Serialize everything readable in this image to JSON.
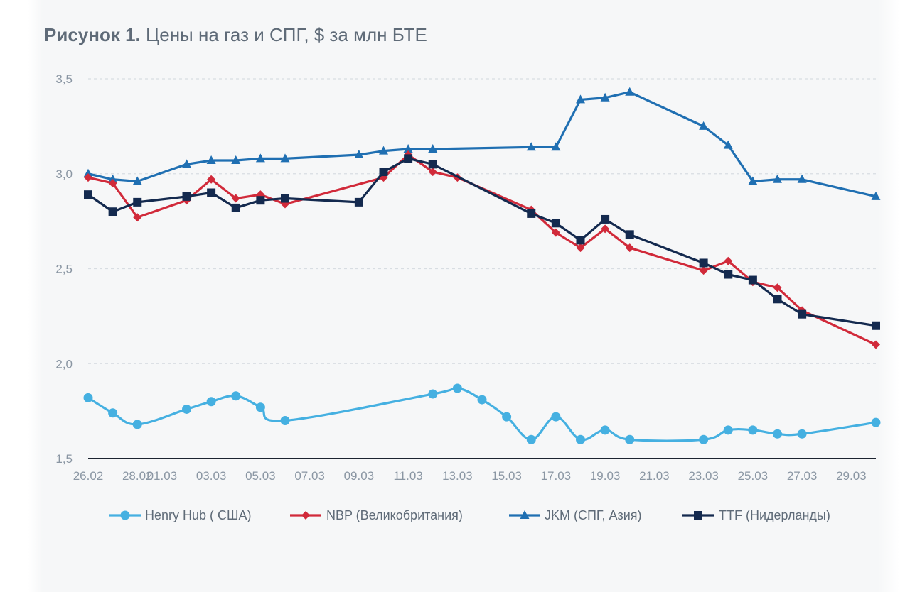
{
  "title": {
    "lead": "Рисунок 1.",
    "text": "Цены на газ и СПГ, $ за млн БТЕ"
  },
  "chart_data": {
    "type": "line",
    "title": "Рисунок 1. Цены на газ и СПГ, $ за млн БТЕ",
    "xlabel": "",
    "ylabel": "",
    "ylim": [
      1.5,
      3.5
    ],
    "yticks": [
      1.5,
      2.0,
      2.5,
      3.0,
      3.5
    ],
    "ytick_labels": [
      "1,5",
      "2,0",
      "2,5",
      "3,0",
      "3,5"
    ],
    "grid": "horizontal dashed",
    "legend": "bottom",
    "x_dates": [
      "26.02",
      "27.02",
      "28.02",
      "01.03",
      "02.03",
      "03.03",
      "04.03",
      "05.03",
      "06.03",
      "07.03",
      "08.03",
      "09.03",
      "10.03",
      "11.03",
      "12.03",
      "13.03",
      "14.03",
      "15.03",
      "16.03",
      "17.03",
      "18.03",
      "19.03",
      "20.03",
      "21.03",
      "22.03",
      "23.03",
      "24.03",
      "25.03",
      "26.03",
      "27.03",
      "28.03",
      "29.03",
      "30.03"
    ],
    "x_tick_labels": [
      "26.02",
      "28.02",
      "01.03",
      "03.03",
      "05.03",
      "07.03",
      "09.03",
      "11.03",
      "13.03",
      "15.03",
      "17.03",
      "19.03",
      "21.03",
      "23.03",
      "25.03",
      "27.03",
      "29.03"
    ],
    "series": [
      {
        "name": "Henry Hub ( США)",
        "color": "#45b0e1",
        "marker": "circle",
        "smooth": true,
        "points": [
          [
            "26.02",
            1.82
          ],
          [
            "27.02",
            1.74
          ],
          [
            "28.02",
            1.68
          ],
          [
            "02.03",
            1.76
          ],
          [
            "03.03",
            1.8
          ],
          [
            "04.03",
            1.83
          ],
          [
            "05.03",
            1.77
          ],
          [
            "06.03",
            1.7
          ],
          [
            "12.03",
            1.84
          ],
          [
            "13.03",
            1.87
          ],
          [
            "14.03",
            1.81
          ],
          [
            "15.03",
            1.72
          ],
          [
            "16.03",
            1.6
          ],
          [
            "17.03",
            1.72
          ],
          [
            "18.03",
            1.6
          ],
          [
            "19.03",
            1.65
          ],
          [
            "20.03",
            1.6
          ],
          [
            "23.03",
            1.6
          ],
          [
            "24.03",
            1.65
          ],
          [
            "25.03",
            1.65
          ],
          [
            "26.03",
            1.63
          ],
          [
            "27.03",
            1.63
          ],
          [
            "30.03",
            1.69
          ]
        ]
      },
      {
        "name": "NBP (Великобритания)",
        "color": "#d12a3a",
        "marker": "diamond",
        "smooth": false,
        "points": [
          [
            "26.02",
            2.98
          ],
          [
            "27.02",
            2.95
          ],
          [
            "28.02",
            2.77
          ],
          [
            "02.03",
            2.86
          ],
          [
            "03.03",
            2.97
          ],
          [
            "04.03",
            2.87
          ],
          [
            "05.03",
            2.89
          ],
          [
            "06.03",
            2.84
          ],
          [
            "10.03",
            2.98
          ],
          [
            "11.03",
            3.1
          ],
          [
            "12.03",
            3.01
          ],
          [
            "13.03",
            2.98
          ],
          [
            "16.03",
            2.81
          ],
          [
            "17.03",
            2.69
          ],
          [
            "18.03",
            2.61
          ],
          [
            "19.03",
            2.71
          ],
          [
            "20.03",
            2.61
          ],
          [
            "23.03",
            2.49
          ],
          [
            "24.03",
            2.54
          ],
          [
            "25.03",
            2.43
          ],
          [
            "26.03",
            2.4
          ],
          [
            "27.03",
            2.28
          ],
          [
            "30.03",
            2.1
          ]
        ]
      },
      {
        "name": "JKM (СПГ, Азия)",
        "color": "#1f6fb2",
        "marker": "triangle",
        "smooth": false,
        "points": [
          [
            "26.02",
            3.0
          ],
          [
            "27.02",
            2.97
          ],
          [
            "28.02",
            2.96
          ],
          [
            "02.03",
            3.05
          ],
          [
            "03.03",
            3.07
          ],
          [
            "04.03",
            3.07
          ],
          [
            "05.03",
            3.08
          ],
          [
            "06.03",
            3.08
          ],
          [
            "09.03",
            3.1
          ],
          [
            "10.03",
            3.12
          ],
          [
            "11.03",
            3.13
          ],
          [
            "12.03",
            3.13
          ],
          [
            "16.03",
            3.14
          ],
          [
            "17.03",
            3.14
          ],
          [
            "18.03",
            3.39
          ],
          [
            "19.03",
            3.4
          ],
          [
            "20.03",
            3.43
          ],
          [
            "23.03",
            3.25
          ],
          [
            "24.03",
            3.15
          ],
          [
            "25.03",
            2.96
          ],
          [
            "26.03",
            2.97
          ],
          [
            "27.03",
            2.97
          ],
          [
            "30.03",
            2.88
          ]
        ]
      },
      {
        "name": "TTF (Нидерланды)",
        "color": "#142a4f",
        "marker": "square",
        "smooth": false,
        "points": [
          [
            "26.02",
            2.89
          ],
          [
            "27.02",
            2.8
          ],
          [
            "28.02",
            2.85
          ],
          [
            "02.03",
            2.88
          ],
          [
            "03.03",
            2.9
          ],
          [
            "04.03",
            2.82
          ],
          [
            "05.03",
            2.86
          ],
          [
            "06.03",
            2.87
          ],
          [
            "09.03",
            2.85
          ],
          [
            "10.03",
            3.01
          ],
          [
            "11.03",
            3.08
          ],
          [
            "12.03",
            3.05
          ],
          [
            "16.03",
            2.79
          ],
          [
            "17.03",
            2.74
          ],
          [
            "18.03",
            2.65
          ],
          [
            "19.03",
            2.76
          ],
          [
            "20.03",
            2.68
          ],
          [
            "23.03",
            2.53
          ],
          [
            "24.03",
            2.47
          ],
          [
            "25.03",
            2.44
          ],
          [
            "26.03",
            2.34
          ],
          [
            "27.03",
            2.26
          ],
          [
            "30.03",
            2.2
          ]
        ]
      }
    ]
  }
}
